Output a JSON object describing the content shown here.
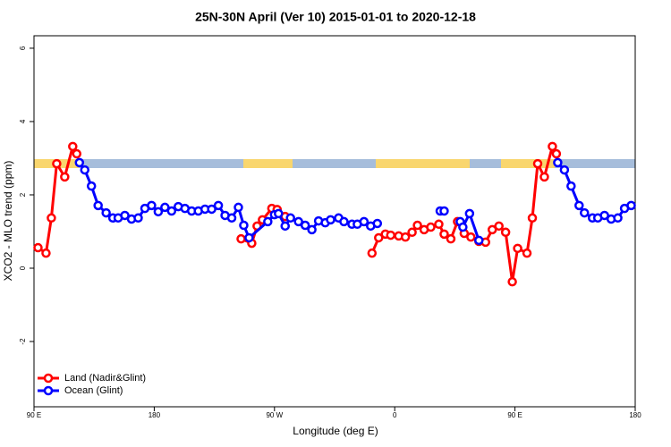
{
  "chart_data": {
    "type": "line",
    "title": "25N-30N April (Ver 10)   2015-01-01 to 2020-12-18",
    "x_label": "Longitude (deg E)",
    "y_label": "XCO2 - MLO trend (ppm)",
    "xlim": [
      90,
      540
    ],
    "ylim": [
      -3.78,
      6.34
    ],
    "xticks": [
      {
        "value": 90,
        "label": "90 E"
      },
      180,
      {
        "value": 270,
        "label": "90 W"
      },
      {
        "value": 360,
        "label": "0"
      },
      {
        "value": 450,
        "label": "90 E"
      },
      {
        "value": 540,
        "label": "180"
      }
    ],
    "yticks": [
      -2,
      0,
      2,
      4,
      6
    ],
    "legend": "bottom-left",
    "series": [
      {
        "name": "Land (Nadir&Glint)",
        "color": "#ff0000",
        "x": [
          93,
          99,
          103,
          107,
          113,
          119,
          122,
          null,
          245,
          253,
          257,
          261,
          268,
          272,
          278,
          null,
          343,
          348,
          353,
          357,
          363,
          368,
          373,
          377,
          382,
          387,
          393,
          397,
          402,
          407,
          412,
          417,
          423,
          428,
          433,
          438,
          443,
          448,
          452,
          459,
          463,
          467,
          472,
          478,
          481
        ],
        "values": [
          0.56,
          0.41,
          1.37,
          2.85,
          2.49,
          3.32,
          3.12,
          null,
          0.8,
          0.68,
          1.15,
          1.32,
          1.63,
          1.6,
          1.41,
          null,
          0.41,
          0.83,
          0.93,
          0.9,
          0.88,
          0.85,
          0.98,
          1.17,
          1.05,
          1.12,
          1.2,
          0.93,
          0.8,
          1.27,
          0.95,
          0.85,
          0.73,
          0.71,
          1.05,
          1.15,
          0.98,
          -0.37,
          0.54,
          0.41,
          1.37,
          2.85,
          2.49,
          3.32,
          3.12
        ]
      },
      {
        "name": "Ocean (Glint)",
        "color": "#0000ff",
        "x": [
          124,
          128,
          133,
          138,
          144,
          149,
          153,
          158,
          163,
          168,
          173,
          178,
          183,
          188,
          193,
          198,
          203,
          208,
          213,
          218,
          223,
          228,
          233,
          238,
          243,
          247,
          251,
          265,
          270,
          273,
          278,
          282,
          288,
          293,
          298,
          303,
          308,
          312,
          318,
          322,
          328,
          332,
          337,
          342,
          347,
          null,
          394,
          397,
          null,
          409,
          411,
          416,
          423,
          null,
          482,
          487,
          492,
          498,
          502,
          508,
          512,
          517,
          522,
          527,
          532,
          537
        ],
        "values": [
          2.88,
          2.68,
          2.24,
          1.71,
          1.51,
          1.37,
          1.37,
          1.44,
          1.34,
          1.37,
          1.63,
          1.71,
          1.54,
          1.66,
          1.56,
          1.68,
          1.63,
          1.56,
          1.56,
          1.61,
          1.61,
          1.71,
          1.44,
          1.37,
          1.66,
          1.17,
          0.83,
          1.27,
          1.46,
          1.49,
          1.15,
          1.37,
          1.27,
          1.17,
          1.05,
          1.29,
          1.24,
          1.32,
          1.37,
          1.27,
          1.2,
          1.2,
          1.27,
          1.15,
          1.22,
          null,
          1.56,
          1.56,
          null,
          1.27,
          1.12,
          1.49,
          0.76,
          null,
          2.88,
          2.68,
          2.24,
          1.71,
          1.51,
          1.37,
          1.37,
          1.44,
          1.34,
          1.37,
          1.63,
          1.71
        ]
      }
    ]
  }
}
